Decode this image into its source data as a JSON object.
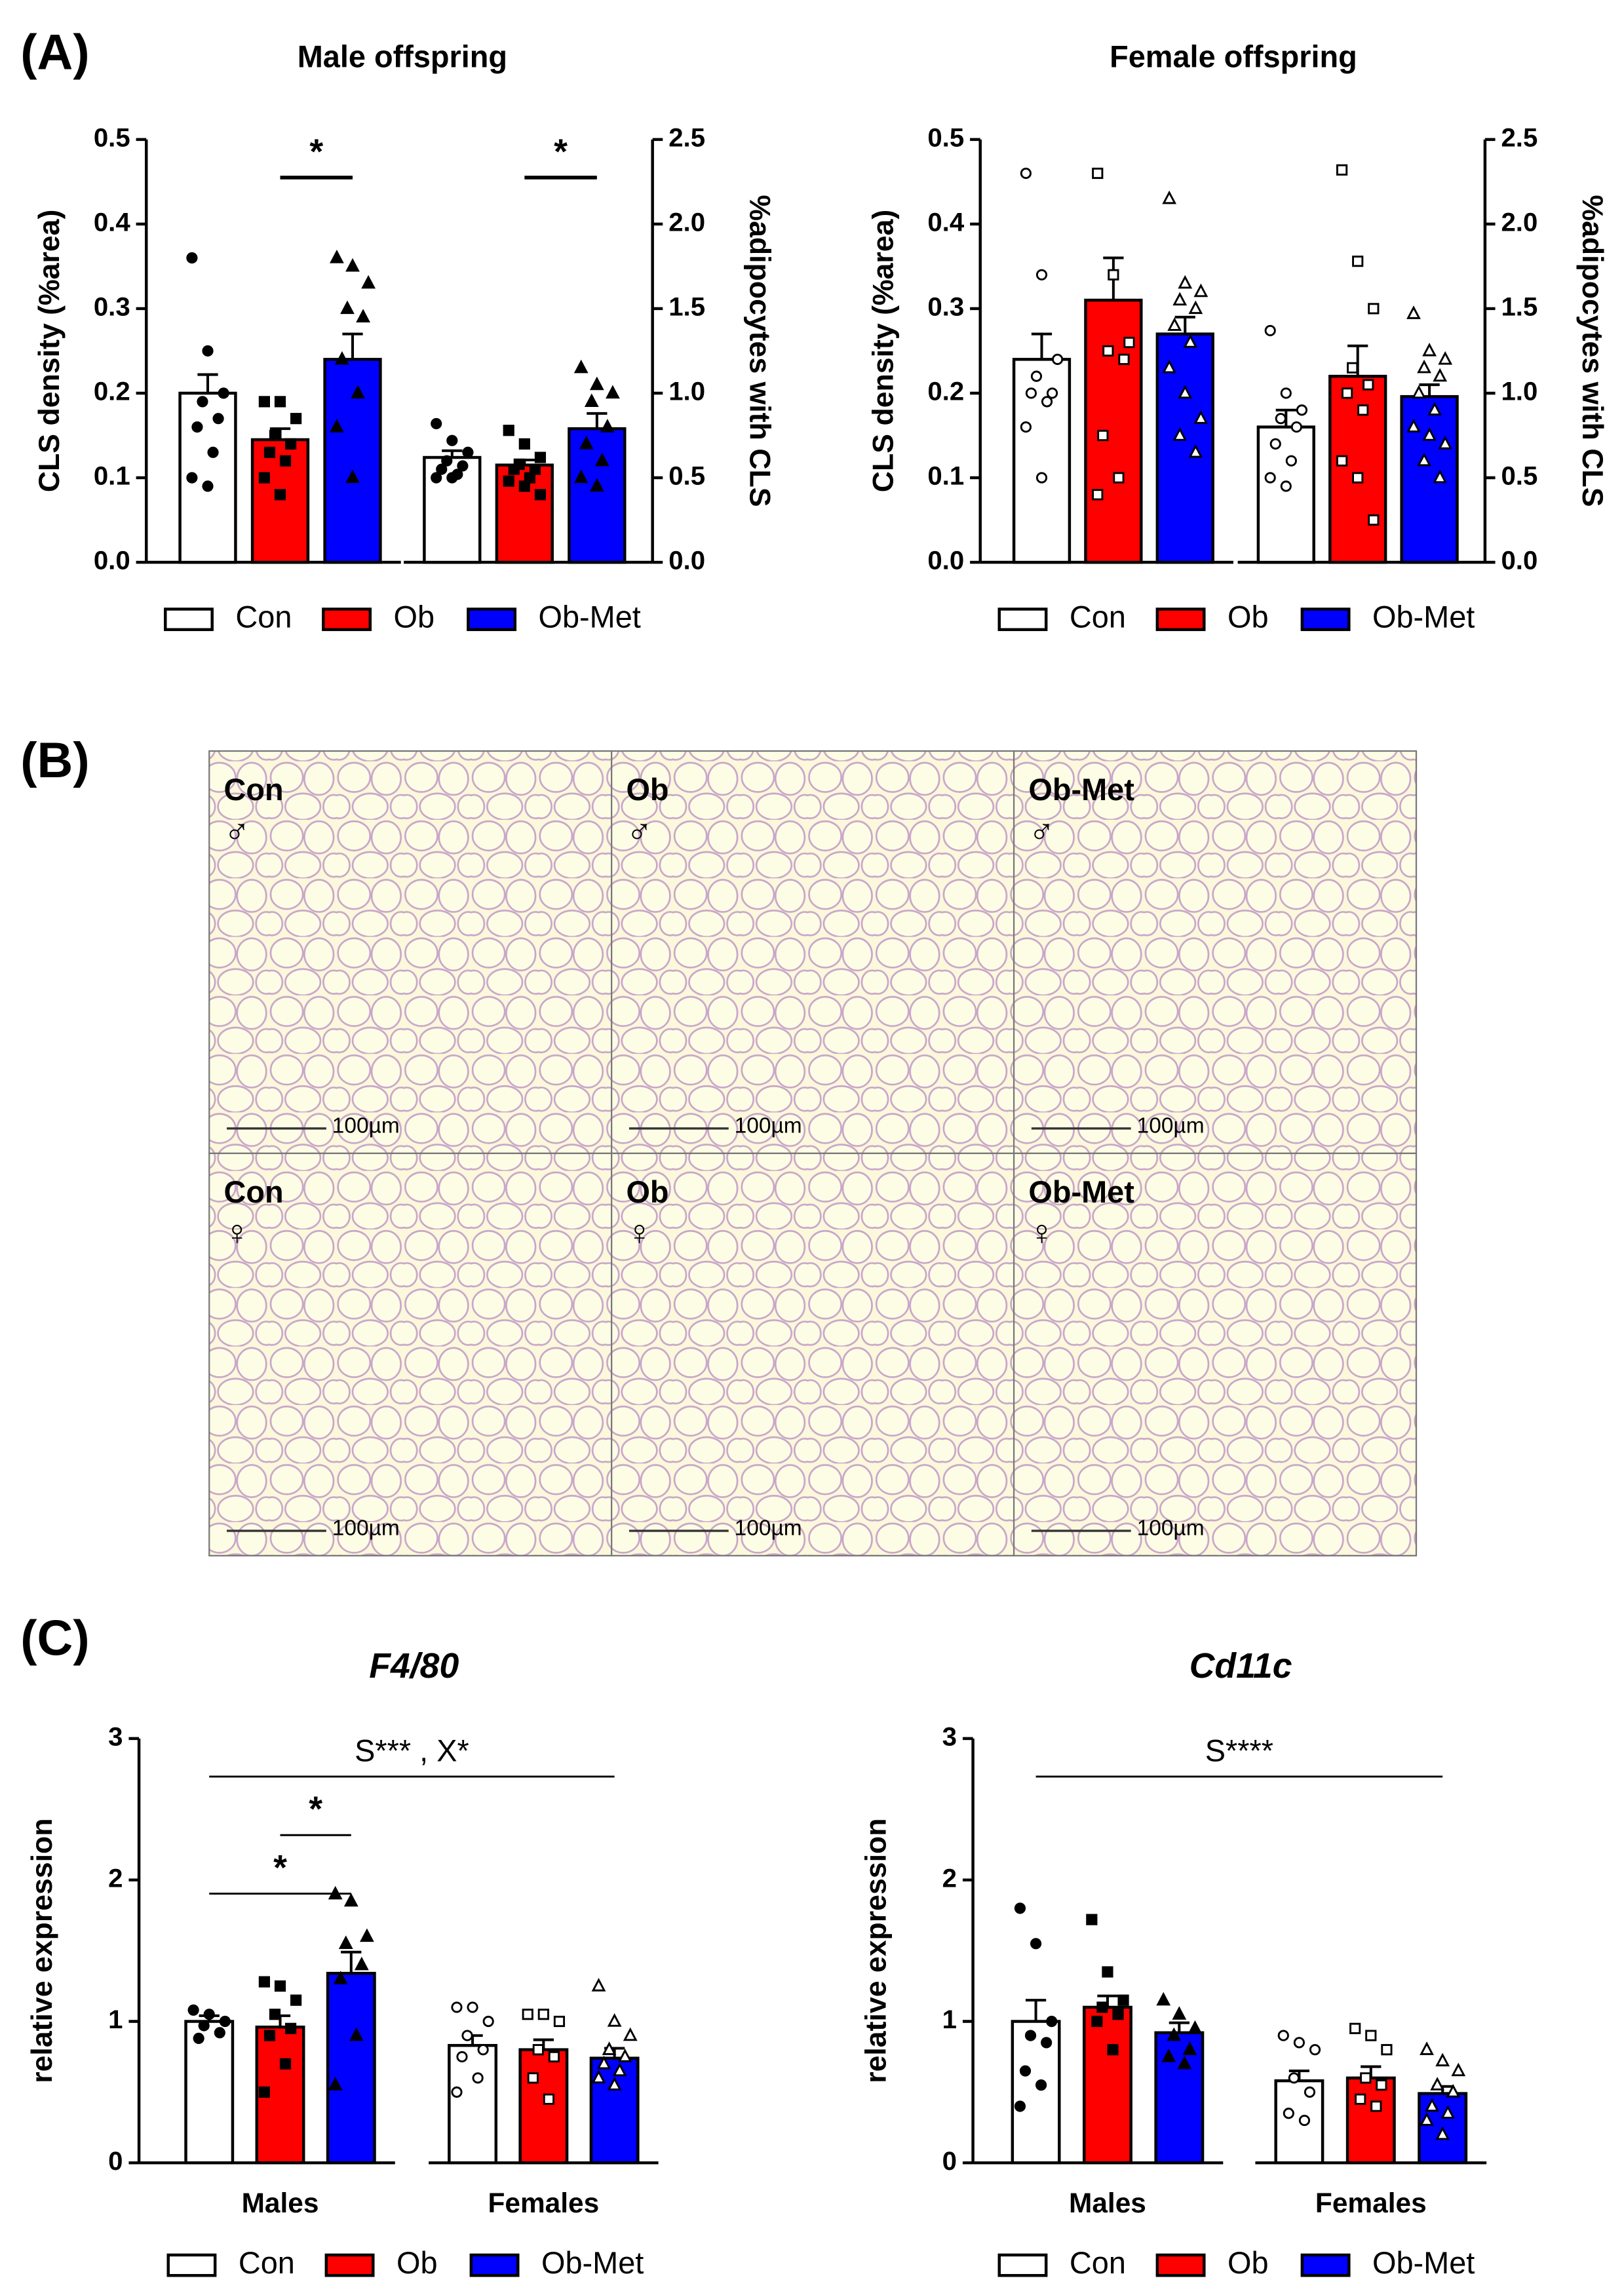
{
  "panels": {
    "a": "(A)",
    "b": "(B)",
    "c": "(C)"
  },
  "micrographs": [
    {
      "group": "Con",
      "sex": "♂",
      "scale": "100µm"
    },
    {
      "group": "Ob",
      "sex": "♂",
      "scale": "100µm"
    },
    {
      "group": "Ob-Met",
      "sex": "♂",
      "scale": "100µm"
    },
    {
      "group": "Con",
      "sex": "♀",
      "scale": "100µm"
    },
    {
      "group": "Ob",
      "sex": "♀",
      "scale": "100µm"
    },
    {
      "group": "Ob-Met",
      "sex": "♀",
      "scale": "100µm"
    }
  ],
  "chart_data": [
    {
      "type": "bar",
      "title": "Male offspring",
      "ylabel": "CLS density (%area)",
      "y2label": "%adipocytes with  CLS",
      "ylim": [
        0,
        0.5
      ],
      "yticks": [
        {
          "value": 0,
          "label": "0.0"
        },
        0.1,
        0.2,
        0.3,
        0.4,
        0.5
      ],
      "y2lim": [
        0,
        2.5
      ],
      "y2ticks": [
        {
          "value": 0,
          "label": "0.0"
        },
        0.5,
        {
          "value": 1,
          "label": "1.0"
        },
        1.5,
        {
          "value": 2,
          "label": "2.0"
        },
        2.5
      ],
      "group_axes": [
        "y",
        "y2"
      ],
      "markers": [
        "circle",
        "square",
        "triangle"
      ],
      "filled_markers": [
        true,
        true
      ],
      "series": [
        {
          "name": "Con",
          "color": "#ffffff",
          "values": [
            0.2,
            0.62
          ],
          "errors": [
            0.022,
            0.04
          ],
          "points": [
            [
              0.36,
              0.25,
              0.2,
              0.19,
              0.17,
              0.16,
              0.13,
              0.1,
              0.09
            ],
            [
              0.82,
              0.72,
              0.65,
              0.6,
              0.57,
              0.55,
              0.52,
              0.5,
              0.5
            ]
          ]
        },
        {
          "name": "Ob",
          "color": "#ff0000",
          "values": [
            0.145,
            0.575
          ],
          "errors": [
            0.013,
            0.03
          ],
          "points": [
            [
              0.19,
              0.19,
              0.17,
              0.15,
              0.14,
              0.13,
              0.12,
              0.1,
              0.08
            ],
            [
              0.78,
              0.7,
              0.62,
              0.58,
              0.55,
              0.55,
              0.5,
              0.48,
              0.45,
              0.4
            ]
          ]
        },
        {
          "name": "Ob-Met",
          "color": "#0000ff",
          "values": [
            0.24,
            0.79
          ],
          "errors": [
            0.03,
            0.09
          ],
          "points": [
            [
              0.36,
              0.35,
              0.33,
              0.3,
              0.29,
              0.24,
              0.2,
              0.16,
              0.1
            ],
            [
              1.15,
              1.05,
              1.0,
              0.95,
              0.8,
              0.7,
              0.6,
              0.5,
              0.45
            ]
          ]
        }
      ],
      "annotations": [
        {
          "text": "*",
          "from": [
            0,
            1
          ],
          "to": [
            0,
            2
          ]
        },
        {
          "text": "*",
          "from": [
            1,
            1
          ],
          "to": [
            1,
            2
          ]
        }
      ]
    },
    {
      "type": "bar",
      "title": "Female offspring",
      "ylabel": "CLS density (%area)",
      "y2label": "%adipocytes with  CLS",
      "ylim": [
        0,
        0.5
      ],
      "yticks": [
        {
          "value": 0,
          "label": "0.0"
        },
        0.1,
        0.2,
        0.3,
        0.4,
        0.5
      ],
      "y2lim": [
        0,
        2.5
      ],
      "y2ticks": [
        {
          "value": 0,
          "label": "0.0"
        },
        0.5,
        {
          "value": 1,
          "label": "1.0"
        },
        1.5,
        {
          "value": 2,
          "label": "2.0"
        },
        2.5
      ],
      "group_axes": [
        "y",
        "y2"
      ],
      "markers": [
        "circle",
        "square",
        "triangle"
      ],
      "filled_markers": [
        false,
        false
      ],
      "series": [
        {
          "name": "Con",
          "color": "#ffffff",
          "values": [
            0.24,
            0.8
          ],
          "errors": [
            0.03,
            0.1
          ],
          "points": [
            [
              0.46,
              0.34,
              0.24,
              0.22,
              0.2,
              0.2,
              0.19,
              0.16,
              0.1
            ],
            [
              1.37,
              1.0,
              0.9,
              0.85,
              0.8,
              0.7,
              0.6,
              0.5,
              0.45
            ]
          ]
        },
        {
          "name": "Ob",
          "color": "#ff0000",
          "values": [
            0.31,
            1.1
          ],
          "errors": [
            0.05,
            0.18
          ],
          "points": [
            [
              0.46,
              0.34,
              0.26,
              0.25,
              0.24,
              0.15,
              0.1,
              0.08
            ],
            [
              2.32,
              1.78,
              1.5,
              1.15,
              1.05,
              1.0,
              0.9,
              0.6,
              0.5,
              0.25
            ]
          ]
        },
        {
          "name": "Ob-Met",
          "color": "#0000ff",
          "values": [
            0.27,
            0.98
          ],
          "errors": [
            0.02,
            0.07
          ],
          "points": [
            [
              0.43,
              0.33,
              0.32,
              0.31,
              0.3,
              0.28,
              0.26,
              0.23,
              0.2,
              0.17,
              0.15,
              0.13
            ],
            [
              1.47,
              1.25,
              1.2,
              1.15,
              1.1,
              1.0,
              0.9,
              0.8,
              0.75,
              0.7,
              0.6,
              0.5
            ]
          ]
        }
      ],
      "annotations": []
    },
    {
      "type": "bar",
      "title": "F4/80",
      "title_style": "italic",
      "ylabel": "relative expression",
      "ylim": [
        0,
        3
      ],
      "yticks": [
        0,
        1,
        2,
        3
      ],
      "categories": [
        "Males",
        "Females"
      ],
      "group_axes": [
        "y",
        "y"
      ],
      "markers": [
        "circle",
        "square",
        "triangle"
      ],
      "filled_markers": [
        true,
        false
      ],
      "series": [
        {
          "name": "Con",
          "color": "#ffffff",
          "values": [
            1.0,
            0.83
          ],
          "errors": [
            0.04,
            0.07
          ],
          "points": [
            [
              1.08,
              1.05,
              1.0,
              0.97,
              0.92,
              0.88
            ],
            [
              1.1,
              1.1,
              1.0,
              0.9,
              0.8,
              0.75,
              0.6,
              0.5
            ]
          ]
        },
        {
          "name": "Ob",
          "color": "#ff0000",
          "values": [
            0.96,
            0.8
          ],
          "errors": [
            0.08,
            0.07
          ],
          "points": [
            [
              1.28,
              1.25,
              1.15,
              1.05,
              0.95,
              0.9,
              0.7,
              0.5
            ],
            [
              1.05,
              1.05,
              1.0,
              0.8,
              0.75,
              0.6,
              0.45
            ]
          ]
        },
        {
          "name": "Ob-Met",
          "color": "#0000ff",
          "values": [
            1.34,
            0.74
          ],
          "errors": [
            0.15,
            0.07
          ],
          "points": [
            [
              1.9,
              1.85,
              1.6,
              1.55,
              1.4,
              1.3,
              0.9,
              0.55
            ],
            [
              1.25,
              1.0,
              0.9,
              0.8,
              0.75,
              0.7,
              0.65,
              0.6,
              0.55
            ]
          ]
        }
      ],
      "annotations": [
        {
          "text": "S*** , X*",
          "from": [
            0,
            0
          ],
          "to": [
            1,
            2
          ]
        },
        {
          "text": "*",
          "from": [
            0,
            1
          ],
          "to": [
            0,
            2
          ]
        },
        {
          "text": "*",
          "from": [
            0,
            0
          ],
          "to": [
            0,
            2
          ]
        }
      ]
    },
    {
      "type": "bar",
      "title": "Cd11c",
      "title_style": "italic",
      "ylabel": "relative expression",
      "ylim": [
        0,
        3
      ],
      "yticks": [
        0,
        1,
        2,
        3
      ],
      "categories": [
        "Males",
        "Females"
      ],
      "group_axes": [
        "y",
        "y"
      ],
      "markers": [
        "circle",
        "square",
        "triangle"
      ],
      "filled_markers": [
        true,
        false
      ],
      "series": [
        {
          "name": "Con",
          "color": "#ffffff",
          "values": [
            1.0,
            0.58
          ],
          "errors": [
            0.15,
            0.07
          ],
          "points": [
            [
              1.8,
              1.55,
              1.0,
              0.9,
              0.85,
              0.65,
              0.55,
              0.4
            ],
            [
              0.9,
              0.85,
              0.8,
              0.6,
              0.5,
              0.35,
              0.3
            ]
          ]
        },
        {
          "name": "Ob",
          "color": "#ff0000",
          "values": [
            1.1,
            0.6
          ],
          "errors": [
            0.08,
            0.08
          ],
          "points": [
            [
              1.72,
              1.35,
              1.15,
              1.1,
              1.05,
              1.0,
              0.8
            ],
            [
              0.95,
              0.9,
              0.8,
              0.6,
              0.55,
              0.45,
              0.4
            ]
          ]
        },
        {
          "name": "Ob-Met",
          "color": "#0000ff",
          "values": [
            0.92,
            0.49
          ],
          "errors": [
            0.07,
            0.05
          ],
          "points": [
            [
              1.15,
              1.05,
              0.95,
              0.9,
              0.8,
              0.75,
              0.7
            ],
            [
              0.8,
              0.72,
              0.65,
              0.55,
              0.5,
              0.4,
              0.35,
              0.3,
              0.2
            ]
          ]
        }
      ],
      "annotations": [
        {
          "text": "S****",
          "from": [
            0,
            0
          ],
          "to": [
            1,
            2
          ]
        }
      ]
    }
  ]
}
